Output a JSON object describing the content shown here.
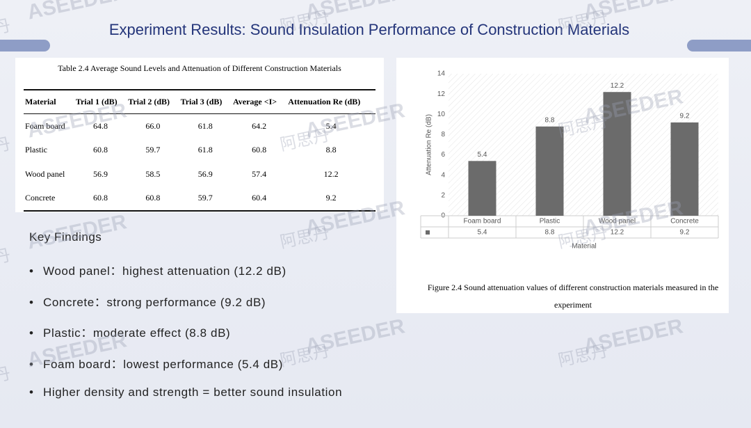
{
  "title": "Experiment Results: Sound Insulation Performance of Construction Materials",
  "watermark": {
    "chinese": "阿思丹",
    "latin": "ASEEDER"
  },
  "table": {
    "caption": "Table 2.4 Average Sound Levels and Attenuation of Different Construction Materials",
    "header": [
      "Material",
      "Trial 1 (dB)",
      "Trial 2 (dB)",
      "Trial 3 (dB)",
      "Average <I>",
      "Attenuation Re (dB)"
    ],
    "rows": [
      [
        "Foam board",
        "64.8",
        "66.0",
        "61.8",
        "64.2",
        "5.4"
      ],
      [
        "Plastic",
        "60.8",
        "59.7",
        "61.8",
        "60.8",
        "8.8"
      ],
      [
        "Wood panel",
        "56.9",
        "58.5",
        "56.9",
        "57.4",
        "12.2"
      ],
      [
        "Concrete",
        "60.8",
        "60.8",
        "59.7",
        "60.4",
        "9.2"
      ]
    ]
  },
  "findings": {
    "heading": "Key Findings",
    "items": [
      "Wood panel：highest attenuation (12.2 dB)",
      "Concrete：strong performance (9.2 dB)",
      "Plastic：moderate effect (8.8 dB)",
      "Foam board：lowest performance (5.4 dB)",
      "Higher density and strength = better sound insulation"
    ]
  },
  "chart_data": {
    "type": "bar",
    "categories": [
      "Foam board",
      "Plastic",
      "Wood panel",
      "Concrete"
    ],
    "values": [
      5.4,
      8.8,
      12.2,
      9.2
    ],
    "color": "#6b6b6b",
    "ylim": [
      0,
      14
    ],
    "yticks": [
      0,
      2,
      4,
      6,
      8,
      10,
      12,
      14
    ],
    "ylabel": "Attenuation Re (dB)",
    "xlabel": "Material",
    "caption": "Figure 2.4 Sound attenuation values of different construction materials measured in the experiment"
  }
}
